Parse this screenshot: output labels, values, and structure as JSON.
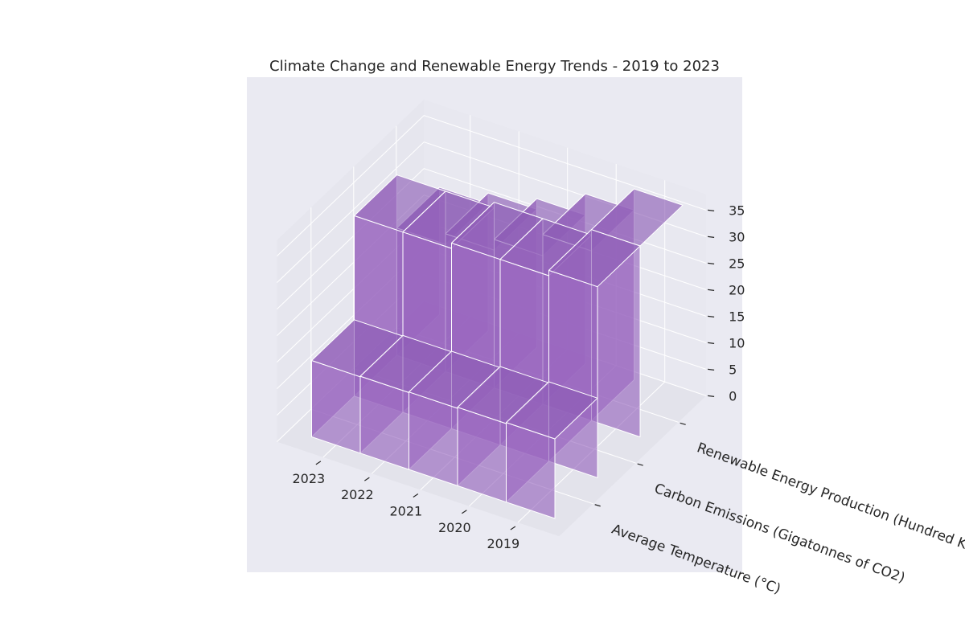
{
  "chart_data": {
    "type": "bar3d",
    "title": "Climate Change and Renewable Energy Trends - 2019 to 2023",
    "years": [
      "2023",
      "2022",
      "2021",
      "2020",
      "2019"
    ],
    "metrics": [
      "Average Temperature (°C)",
      "Carbon Emissions (Gigatonnes of CO2)",
      "Renewable Energy Production (Hundred Kilow..."
    ],
    "series": [
      {
        "name": "Average Temperature (°C)",
        "values": [
          15,
          14.8,
          14.6,
          14.5,
          14.4
        ]
      },
      {
        "name": "Carbon Emissions (Gigatonnes of CO2)",
        "values": [
          36,
          35,
          35,
          34,
          34
        ]
      },
      {
        "name": "Renewable Energy Production (Hundred Kilow...",
        "values": [
          36,
          32,
          28,
          26,
          24
        ]
      }
    ],
    "zticks": [
      "0",
      "5",
      "10",
      "15",
      "20",
      "25",
      "30",
      "35"
    ],
    "zlim": [
      0,
      38
    ],
    "grid": true,
    "colors": {
      "bar": "#9b6fc6",
      "background": "#eaeaf2",
      "pane": "#e6e6ee",
      "edge": "#ffffff"
    }
  }
}
